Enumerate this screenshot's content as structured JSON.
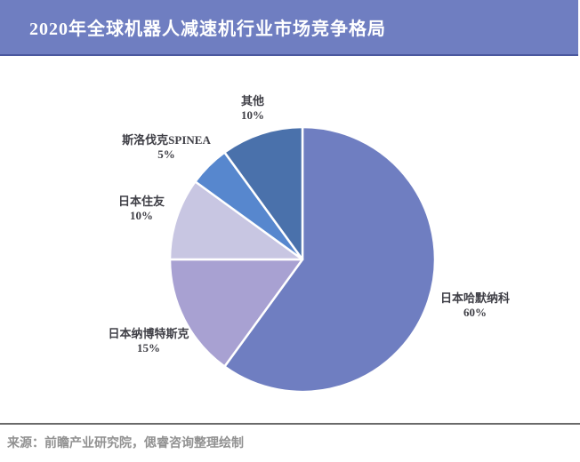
{
  "header": {
    "title": "2020年全球机器人减速机行业市场竞争格局",
    "bg_color": "#6F7EC1",
    "border_color": "#4A589E",
    "text_color": "#FFFFFF"
  },
  "footer": {
    "source_text": "来源：前瞻产业研究院，偲睿咨询整理绘制"
  },
  "chart_data": {
    "type": "pie",
    "title": "2020年全球机器人减速机行业市场竞争格局",
    "start_angle_deg": 0,
    "direction": "clockwise",
    "legend": "none",
    "label_style": "name and percent outside slices",
    "separator_color": "#FFFFFF",
    "slices": [
      {
        "name": "日本哈默纳科",
        "value": 60,
        "percent_label": "60%",
        "color": "#6F7EC1"
      },
      {
        "name": "日本纳博特斯克",
        "value": 15,
        "percent_label": "15%",
        "color": "#A8A1D2"
      },
      {
        "name": "日本住友",
        "value": 10,
        "percent_label": "10%",
        "color": "#C8C6E2"
      },
      {
        "name": "斯洛伐克SPINEA",
        "value": 5,
        "percent_label": "5%",
        "color": "#5787CE"
      },
      {
        "name": "其他",
        "value": 10,
        "percent_label": "10%",
        "color": "#4A71AB"
      }
    ]
  }
}
